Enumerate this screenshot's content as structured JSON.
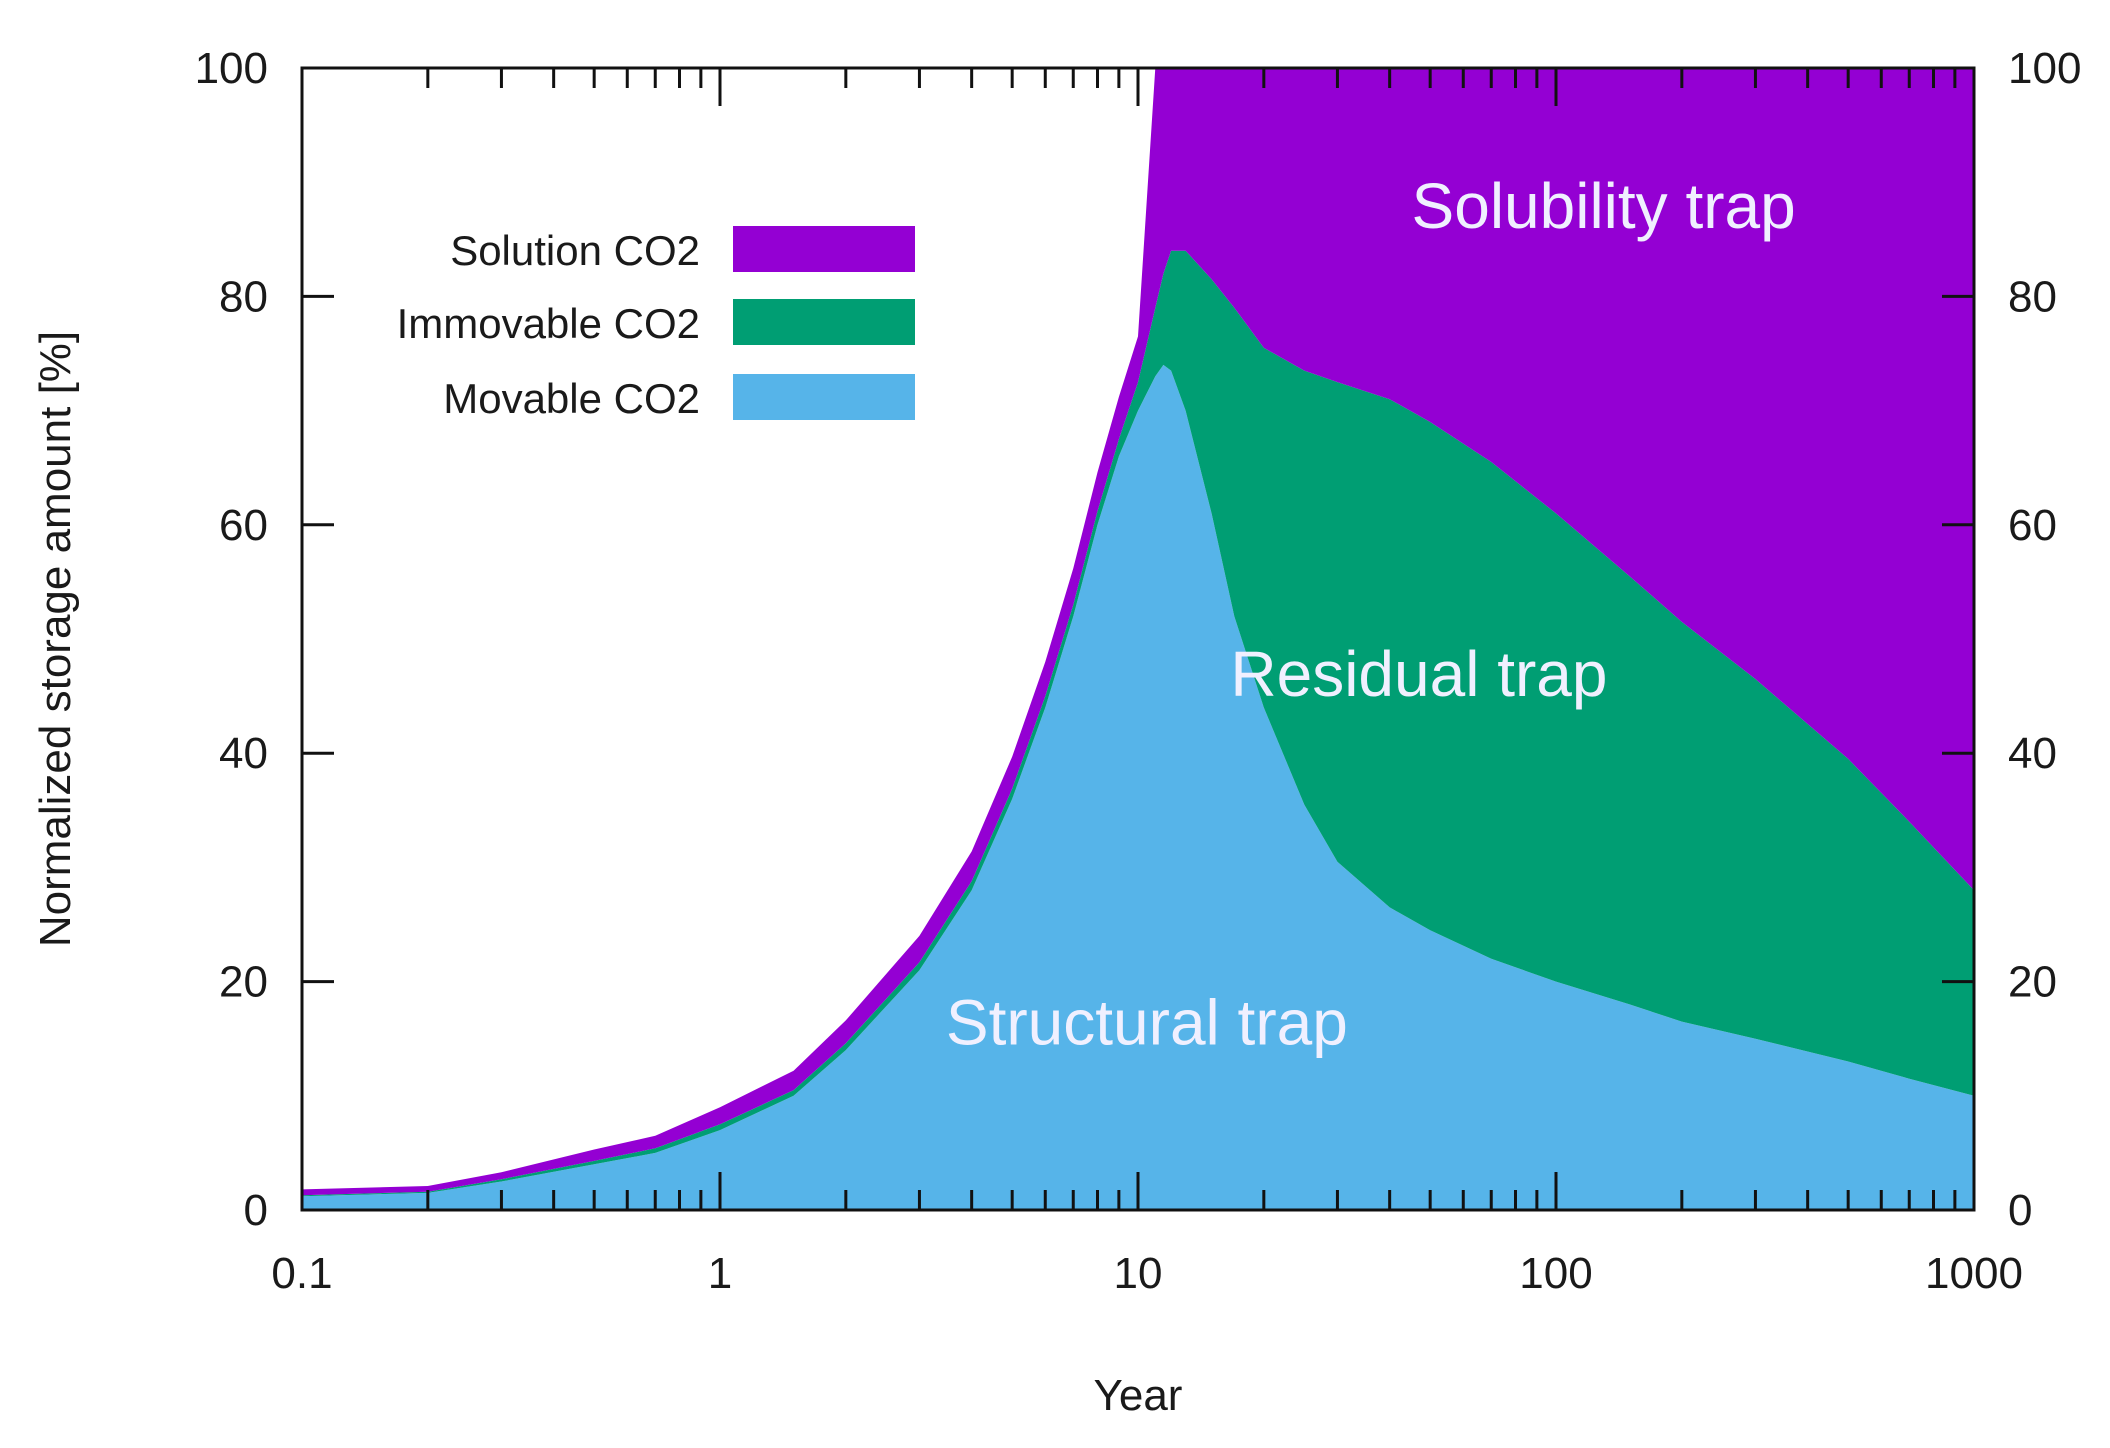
{
  "chart_data": {
    "type": "area",
    "stacked": true,
    "xscale": "log",
    "xlabel": "Year",
    "ylabel": "Normalized storage amount [%]",
    "xlim": [
      0.1,
      1000
    ],
    "ylim": [
      0,
      100
    ],
    "x_ticks": [
      0.1,
      1,
      10,
      100,
      1000
    ],
    "x_tick_labels": [
      "0.1",
      "1",
      "10",
      "100",
      "1000"
    ],
    "y_ticks": [
      0,
      20,
      40,
      60,
      80,
      100
    ],
    "y_tick_labels": [
      "0",
      "20",
      "40",
      "60",
      "80",
      "100"
    ],
    "x": [
      0.1,
      0.2,
      0.3,
      0.5,
      0.7,
      1,
      1.5,
      2,
      3,
      4,
      5,
      6,
      7,
      8,
      9,
      10,
      11,
      11.5,
      12,
      13,
      15,
      17,
      20,
      25,
      30,
      40,
      50,
      70,
      100,
      150,
      200,
      300,
      500,
      700,
      1000
    ],
    "series": [
      {
        "name": "Movable CO2",
        "region_label": "Structural trap",
        "color": "#56b4e9",
        "values": [
          1.2,
          1.5,
          2.5,
          4.0,
          5.0,
          7.0,
          10.0,
          14.0,
          21.0,
          28.0,
          36.0,
          44.0,
          52.0,
          60.0,
          66.0,
          70.0,
          73.0,
          74.0,
          73.5,
          70.0,
          61.0,
          52.0,
          44.0,
          35.5,
          30.5,
          26.5,
          24.5,
          22.0,
          20.0,
          18.0,
          16.5,
          15.0,
          13.0,
          11.5,
          10.0
        ]
      },
      {
        "name": "Immovable CO2",
        "region_label": "Residual trap",
        "color": "#009e73",
        "values": [
          0.1,
          0.1,
          0.2,
          0.3,
          0.4,
          0.5,
          0.5,
          0.6,
          0.7,
          0.8,
          0.9,
          1.0,
          1.0,
          1.2,
          1.5,
          2.5,
          6.0,
          8.0,
          10.5,
          14.0,
          20.5,
          27.0,
          31.5,
          38.0,
          42.0,
          44.5,
          44.5,
          43.5,
          41.0,
          37.5,
          35.0,
          31.5,
          26.5,
          22.5,
          18.0
        ]
      },
      {
        "name": "Solution CO2",
        "region_label": "Solubility trap",
        "color": "#9400d3",
        "values": [
          0.5,
          0.5,
          0.6,
          1.0,
          1.1,
          1.5,
          1.7,
          2.0,
          2.3,
          2.6,
          2.8,
          3.0,
          3.2,
          3.4,
          3.7,
          4.0,
          21.0,
          18.0,
          16.0,
          16.0,
          18.5,
          21.0,
          24.5,
          26.5,
          27.5,
          29.0,
          31.0,
          34.5,
          39.0,
          44.5,
          48.5,
          53.5,
          60.5,
          66.0,
          72.0
        ]
      }
    ],
    "legend": {
      "position": "top-left",
      "entries": [
        "Solution CO2",
        "Immovable CO2",
        "Movable CO2"
      ]
    },
    "region_labels": [
      "Solubility trap",
      "Residual trap",
      "Structural trap"
    ],
    "grid": false
  }
}
